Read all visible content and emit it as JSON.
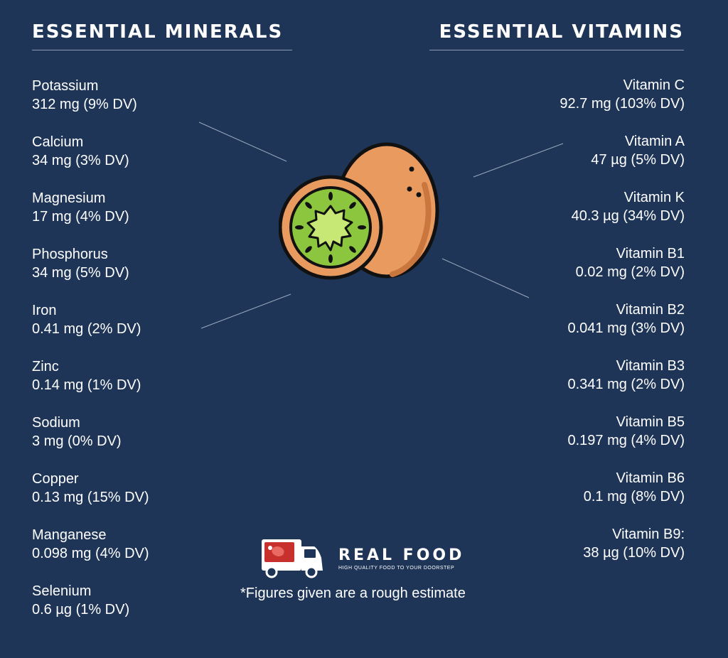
{
  "minerals": {
    "heading": "ESSENTIAL MINERALS",
    "items": [
      {
        "name": "Potassium",
        "value": "312 mg (9% DV)"
      },
      {
        "name": "Calcium",
        "value": "34 mg (3% DV)"
      },
      {
        "name": "Magnesium",
        "value": "17 mg (4% DV)"
      },
      {
        "name": "Phosphorus",
        "value": "34 mg (5% DV)"
      },
      {
        "name": "Iron",
        "value": "0.41 mg (2% DV)"
      },
      {
        "name": "Zinc",
        "value": "0.14 mg (1% DV)"
      },
      {
        "name": "Sodium",
        "value": "3 mg (0% DV)"
      },
      {
        "name": "Copper",
        "value": "0.13 mg (15% DV)"
      },
      {
        "name": "Manganese",
        "value": "0.098 mg (4% DV)"
      },
      {
        "name": "Selenium",
        "value": "0.6 µg (1% DV)"
      }
    ]
  },
  "vitamins": {
    "heading": "ESSENTIAL VITAMINS",
    "items": [
      {
        "name": "Vitamin C",
        "value": "92.7 mg (103% DV)"
      },
      {
        "name": "Vitamin A",
        "value": "47 µg (5% DV)"
      },
      {
        "name": "Vitamin K",
        "value": "40.3 µg (34% DV)"
      },
      {
        "name": "Vitamin B1",
        "value": "0.02 mg (2% DV)"
      },
      {
        "name": "Vitamin B2",
        "value": "0.041 mg (3% DV)"
      },
      {
        "name": "Vitamin B3",
        "value": "0.341 mg (2% DV)"
      },
      {
        "name": "Vitamin B5",
        "value": "0.197 mg (4% DV)"
      },
      {
        "name": "Vitamin B6",
        "value": "0.1 mg (8% DV)"
      },
      {
        "name": "Vitamin B9:",
        "value": "38 µg (10% DV)"
      }
    ]
  },
  "brand": {
    "name": "REAL FOOD",
    "tagline": "HIGH QUALITY FOOD TO YOUR DOORSTEP",
    "icon": "delivery-truck-icon"
  },
  "illustration": {
    "icon": "kiwi-icon"
  },
  "footnote": "*Figures given are a rough estimate",
  "colors": {
    "background": "#1e3557",
    "kiwi_skin": "#e99a5f",
    "kiwi_flesh": "#8cc63f",
    "truck_cargo": "#c8302e"
  }
}
